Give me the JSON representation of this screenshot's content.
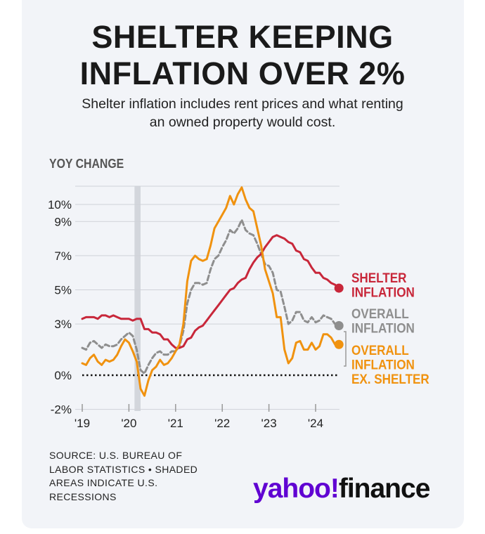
{
  "header": {
    "title_line1": "SHELTER KEEPING",
    "title_line2": "INFLATION OVER 2%",
    "subtitle_line1": "Shelter inflation includes rent prices and what renting",
    "subtitle_line2": "an owned property would cost."
  },
  "footer": {
    "source_line1": "SOURCE: U.S. BUREAU OF",
    "source_line2": "LABOR STATISTICS • SHADED",
    "source_line3": "AREAS INDICATE U.S.",
    "source_line4": "RECESSIONS",
    "logo_yahoo": "yahoo!",
    "logo_finance": "finance"
  },
  "colors": {
    "shelter": "#c8273a",
    "overall": "#8e8e8e",
    "ex_shelter": "#f0920f",
    "recession": "#d3d6dc",
    "grid": "#cfd2d8"
  },
  "chart_data": {
    "type": "line",
    "title": "SHELTER KEEPING INFLATION OVER 2%",
    "ylabel": "YOY CHANGE",
    "ylim": [
      -2,
      11
    ],
    "y_ticks": [
      -2,
      0,
      3,
      5,
      7,
      9,
      10
    ],
    "y_tick_labels": [
      "-2%",
      "0%",
      "3%",
      "5%",
      "7%",
      "9%",
      "10%"
    ],
    "x_ticks": [
      2019,
      2020,
      2021,
      2022,
      2023,
      2024
    ],
    "x_tick_labels": [
      "'19",
      "'20",
      "'21",
      "'22",
      "'23",
      "'24"
    ],
    "xlim": [
      2019,
      2024.6
    ],
    "recession": [
      2020.12,
      2020.25
    ],
    "series": [
      {
        "name": "Shelter inflation",
        "label_lines": [
          "SHELTER",
          "INFLATION"
        ],
        "style": "solid",
        "x": [
          2019.0,
          2019.083,
          2019.167,
          2019.25,
          2019.333,
          2019.417,
          2019.5,
          2019.583,
          2019.667,
          2019.75,
          2019.833,
          2019.917,
          2020.0,
          2020.083,
          2020.167,
          2020.25,
          2020.333,
          2020.417,
          2020.5,
          2020.583,
          2020.667,
          2020.75,
          2020.833,
          2020.917,
          2021.0,
          2021.083,
          2021.167,
          2021.25,
          2021.333,
          2021.417,
          2021.5,
          2021.583,
          2021.667,
          2021.75,
          2021.833,
          2021.917,
          2022.0,
          2022.083,
          2022.167,
          2022.25,
          2022.333,
          2022.417,
          2022.5,
          2022.583,
          2022.667,
          2022.75,
          2022.833,
          2022.917,
          2023.0,
          2023.083,
          2023.167,
          2023.25,
          2023.333,
          2023.417,
          2023.5,
          2023.583,
          2023.667,
          2023.75,
          2023.833,
          2023.917,
          2024.0,
          2024.083,
          2024.167,
          2024.25,
          2024.333,
          2024.417,
          2024.5
        ],
        "values": [
          3.3,
          3.4,
          3.4,
          3.4,
          3.3,
          3.5,
          3.5,
          3.4,
          3.5,
          3.4,
          3.3,
          3.3,
          3.3,
          3.2,
          3.3,
          3.3,
          2.7,
          2.7,
          2.5,
          2.5,
          2.4,
          2.1,
          2.1,
          1.8,
          1.6,
          1.6,
          1.7,
          2.1,
          2.2,
          2.6,
          2.8,
          2.9,
          3.2,
          3.5,
          3.8,
          4.1,
          4.4,
          4.7,
          5.0,
          5.1,
          5.4,
          5.6,
          5.7,
          6.2,
          6.6,
          6.9,
          7.1,
          7.5,
          7.8,
          8.1,
          8.2,
          8.1,
          8.0,
          7.8,
          7.7,
          7.3,
          7.2,
          6.8,
          6.7,
          6.3,
          6.0,
          6.0,
          5.7,
          5.6,
          5.4,
          5.3,
          5.1
        ]
      },
      {
        "name": "Overall inflation",
        "label_lines": [
          "OVERALL",
          "INFLATION"
        ],
        "style": "dashed",
        "x": [
          2019.0,
          2019.083,
          2019.167,
          2019.25,
          2019.333,
          2019.417,
          2019.5,
          2019.583,
          2019.667,
          2019.75,
          2019.833,
          2019.917,
          2020.0,
          2020.083,
          2020.167,
          2020.25,
          2020.333,
          2020.417,
          2020.5,
          2020.583,
          2020.667,
          2020.75,
          2020.833,
          2020.917,
          2021.0,
          2021.083,
          2021.167,
          2021.25,
          2021.333,
          2021.417,
          2021.5,
          2021.583,
          2021.667,
          2021.75,
          2021.833,
          2021.917,
          2022.0,
          2022.083,
          2022.167,
          2022.25,
          2022.333,
          2022.417,
          2022.5,
          2022.583,
          2022.667,
          2022.75,
          2022.833,
          2022.917,
          2023.0,
          2023.083,
          2023.167,
          2023.25,
          2023.333,
          2023.417,
          2023.5,
          2023.583,
          2023.667,
          2023.75,
          2023.833,
          2023.917,
          2024.0,
          2024.083,
          2024.167,
          2024.25,
          2024.333,
          2024.417,
          2024.5
        ],
        "values": [
          1.6,
          1.5,
          1.9,
          2.0,
          1.8,
          1.6,
          1.8,
          1.7,
          1.7,
          1.8,
          2.1,
          2.3,
          2.5,
          2.3,
          1.5,
          0.3,
          0.1,
          0.6,
          1.0,
          1.3,
          1.4,
          1.2,
          1.2,
          1.4,
          1.4,
          1.7,
          2.6,
          4.2,
          5.0,
          5.4,
          5.4,
          5.3,
          5.4,
          6.2,
          6.8,
          7.0,
          7.5,
          7.9,
          8.5,
          8.3,
          8.6,
          9.1,
          8.5,
          8.3,
          8.2,
          7.7,
          7.1,
          6.5,
          6.4,
          6.0,
          5.0,
          4.9,
          4.0,
          3.0,
          3.2,
          3.7,
          3.7,
          3.2,
          3.1,
          3.4,
          3.1,
          3.2,
          3.5,
          3.4,
          3.3,
          3.0,
          2.9
        ]
      },
      {
        "name": "Overall inflation ex. shelter",
        "label_lines": [
          "OVERALL",
          "INFLATION",
          "EX. SHELTER"
        ],
        "style": "solid",
        "x": [
          2019.0,
          2019.083,
          2019.167,
          2019.25,
          2019.333,
          2019.417,
          2019.5,
          2019.583,
          2019.667,
          2019.75,
          2019.833,
          2019.917,
          2020.0,
          2020.083,
          2020.167,
          2020.25,
          2020.333,
          2020.417,
          2020.5,
          2020.583,
          2020.667,
          2020.75,
          2020.833,
          2020.917,
          2021.0,
          2021.083,
          2021.167,
          2021.25,
          2021.333,
          2021.417,
          2021.5,
          2021.583,
          2021.667,
          2021.75,
          2021.833,
          2021.917,
          2022.0,
          2022.083,
          2022.167,
          2022.25,
          2022.333,
          2022.417,
          2022.5,
          2022.583,
          2022.667,
          2022.75,
          2022.833,
          2022.917,
          2023.0,
          2023.083,
          2023.167,
          2023.25,
          2023.333,
          2023.417,
          2023.5,
          2023.583,
          2023.667,
          2023.75,
          2023.833,
          2023.917,
          2024.0,
          2024.083,
          2024.167,
          2024.25,
          2024.333,
          2024.417,
          2024.5
        ],
        "values": [
          0.7,
          0.6,
          1.0,
          1.2,
          0.8,
          0.6,
          0.9,
          0.8,
          0.9,
          1.2,
          1.7,
          2.1,
          1.9,
          1.4,
          0.8,
          -0.8,
          -1.2,
          -0.3,
          0.3,
          0.5,
          0.9,
          0.6,
          0.7,
          1.0,
          1.4,
          1.8,
          3.0,
          5.5,
          6.7,
          7.0,
          6.8,
          6.7,
          6.8,
          7.6,
          8.6,
          9.0,
          9.4,
          9.8,
          10.5,
          10.0,
          10.6,
          11.0,
          10.3,
          9.8,
          9.6,
          8.6,
          7.6,
          6.2,
          5.5,
          4.8,
          3.4,
          3.4,
          1.5,
          0.7,
          1.0,
          1.9,
          2.0,
          1.5,
          1.5,
          1.9,
          1.5,
          1.7,
          2.4,
          2.4,
          2.2,
          1.8,
          1.8
        ]
      }
    ]
  }
}
